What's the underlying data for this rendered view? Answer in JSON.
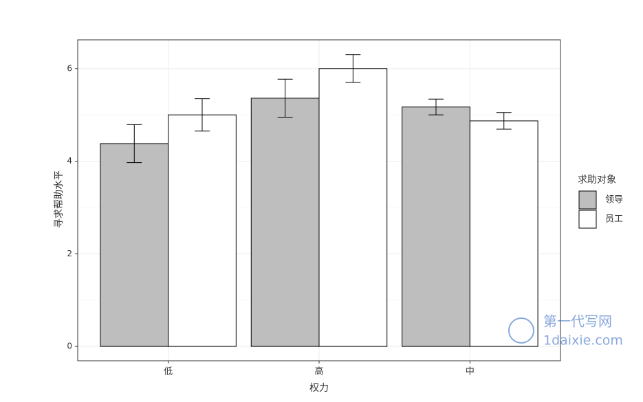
{
  "chart_data": {
    "type": "bar",
    "x_label": "权力",
    "y_label": "寻求帮助水平",
    "categories": [
      "低",
      "高",
      "中"
    ],
    "series": [
      {
        "name": "领导",
        "color": "#bebebe",
        "values": [
          4.38,
          5.36,
          5.17
        ],
        "errors": [
          0.41,
          0.41,
          0.17
        ]
      },
      {
        "name": "员工",
        "color": "#ffffff",
        "values": [
          5.0,
          6.0,
          4.87
        ],
        "errors": [
          0.35,
          0.3,
          0.18
        ]
      }
    ],
    "legend_title": "求助对象",
    "legend_position": "right",
    "ylim": [
      -0.31,
      6.62
    ],
    "yticks": [
      0,
      2,
      4,
      6
    ],
    "y_minor_ticks": [
      1,
      3,
      5
    ],
    "grid": true
  },
  "watermark": {
    "line1": "第一代写网",
    "line2": "1daixie.com"
  }
}
